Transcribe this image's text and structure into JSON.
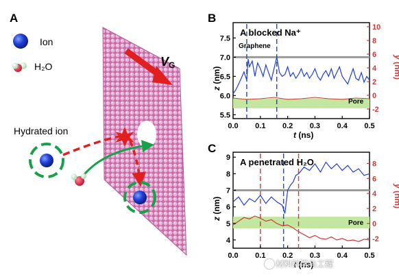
{
  "panel_a": {
    "label": "A",
    "legend_ion": "Ion",
    "legend_water": "H₂O",
    "velocity_label": "V",
    "velocity_sub": "G",
    "hydrated_label": "Hydrated ion",
    "colors": {
      "sheet": "#d98ac0",
      "ion": "#1f3fd6",
      "arrow_red": "#e02020",
      "arrow_green": "#19a04a"
    }
  },
  "chart_data": [
    {
      "type": "line",
      "panel": "B",
      "title": "A blocked Na⁺",
      "xlabel": "t (ns)",
      "ylabel_left": "z (nm)",
      "ylabel_right": "y (nm)",
      "xlim": [
        0,
        0.5
      ],
      "ylim_left": [
        5.4,
        7.9
      ],
      "ylim_right": [
        -3.4,
        10.6
      ],
      "xticks": [
        "0.0",
        "0.1",
        "0.2",
        "0.3",
        "0.4",
        "0.5"
      ],
      "yticks_left": [
        "5.5",
        "6.0",
        "6.5",
        "7.0",
        "7.5"
      ],
      "yticks_right": [
        "-2",
        "0",
        "2",
        "4",
        "6",
        "8",
        "10"
      ],
      "reference_lines": [
        {
          "name": "Graphene",
          "z": 7.0,
          "color": "#999999"
        }
      ],
      "band": {
        "name": "Pore",
        "z_from": 5.67,
        "z_to": 5.92,
        "color": "#c3e6a0"
      },
      "vlines": [
        {
          "x": 0.05,
          "color": "#1f3fd6"
        },
        {
          "x": 0.16,
          "color": "#1f3fd6"
        }
      ],
      "series": [
        {
          "axis": "left",
          "color": "#1f3fd6",
          "x": [
            0.0,
            0.01,
            0.02,
            0.03,
            0.04,
            0.05,
            0.055,
            0.06,
            0.07,
            0.08,
            0.09,
            0.1,
            0.11,
            0.12,
            0.13,
            0.14,
            0.15,
            0.16,
            0.17,
            0.18,
            0.19,
            0.2,
            0.21,
            0.22,
            0.23,
            0.24,
            0.25,
            0.26,
            0.27,
            0.28,
            0.29,
            0.3,
            0.31,
            0.32,
            0.33,
            0.34,
            0.35,
            0.36,
            0.37,
            0.38,
            0.39,
            0.4,
            0.41,
            0.42,
            0.43,
            0.44,
            0.45,
            0.46,
            0.47,
            0.48,
            0.49,
            0.5
          ],
          "y": [
            6.05,
            6.15,
            6.3,
            6.45,
            6.62,
            6.4,
            6.95,
            6.75,
            6.9,
            6.5,
            6.85,
            6.7,
            6.5,
            6.8,
            6.6,
            6.4,
            6.7,
            7.0,
            6.6,
            6.5,
            6.55,
            6.75,
            6.5,
            6.6,
            6.45,
            6.55,
            6.7,
            6.5,
            6.6,
            6.45,
            6.55,
            6.7,
            6.5,
            6.4,
            6.55,
            6.65,
            6.5,
            6.7,
            6.45,
            6.6,
            6.75,
            6.5,
            6.4,
            6.3,
            6.5,
            6.7,
            6.45,
            6.4,
            6.6,
            6.35,
            6.5,
            6.4
          ]
        },
        {
          "axis": "right",
          "color": "#d03a3a",
          "x": [
            0.0,
            0.05,
            0.1,
            0.15,
            0.2,
            0.25,
            0.3,
            0.35,
            0.4,
            0.45,
            0.5
          ],
          "y": [
            -0.4,
            -0.6,
            -0.5,
            -0.3,
            -0.6,
            -0.5,
            -0.3,
            -0.5,
            -0.6,
            -0.4,
            -0.5
          ]
        }
      ]
    },
    {
      "type": "line",
      "panel": "C",
      "title": "A penetrated H₂O",
      "xlabel": "t (ns)",
      "ylabel_left": "z (nm)",
      "ylabel_right": "y (nm)",
      "xlim": [
        0,
        0.5
      ],
      "ylim_left": [
        3.5,
        9.3
      ],
      "ylim_right": [
        -3.3,
        9.5
      ],
      "xticks": [
        "0.0",
        "0.1",
        "0.2",
        "0.3",
        "0.4",
        "0.5"
      ],
      "yticks_left": [
        "4",
        "5",
        "6",
        "7",
        "8",
        "9"
      ],
      "yticks_right": [
        "-2",
        "0",
        "2",
        "4",
        "6",
        "8"
      ],
      "reference_lines": [
        {
          "z": 7.0,
          "color": "#999999"
        }
      ],
      "band": {
        "name": "Pore",
        "z_from": 4.7,
        "z_to": 5.4,
        "color": "#c3e6a0"
      },
      "vlines": [
        {
          "x": 0.1,
          "color": "#d03a3a"
        },
        {
          "x": 0.185,
          "color": "#1f3fd6"
        },
        {
          "x": 0.24,
          "color": "#d03a3a"
        }
      ],
      "series": [
        {
          "axis": "left",
          "color": "#1f3fd6",
          "x": [
            0.0,
            0.02,
            0.04,
            0.06,
            0.08,
            0.1,
            0.12,
            0.14,
            0.16,
            0.18,
            0.19,
            0.2,
            0.21,
            0.22,
            0.23,
            0.24,
            0.26,
            0.28,
            0.3,
            0.32,
            0.34,
            0.36,
            0.38,
            0.4,
            0.42,
            0.44,
            0.46,
            0.48,
            0.5
          ],
          "y": [
            6.3,
            6.6,
            6.1,
            6.5,
            6.3,
            6.7,
            6.2,
            6.6,
            6.3,
            6.1,
            5.6,
            7.0,
            7.3,
            7.5,
            7.9,
            8.0,
            8.4,
            8.2,
            8.6,
            8.1,
            8.7,
            8.3,
            8.6,
            8.2,
            8.5,
            8.1,
            8.3,
            7.9,
            8.0
          ]
        },
        {
          "axis": "right",
          "color": "#d03a3a",
          "x": [
            0.0,
            0.02,
            0.04,
            0.06,
            0.08,
            0.1,
            0.12,
            0.14,
            0.16,
            0.18,
            0.2,
            0.22,
            0.24,
            0.26,
            0.28,
            0.3,
            0.32,
            0.34,
            0.36,
            0.38,
            0.4,
            0.42,
            0.44,
            0.46,
            0.48,
            0.5
          ],
          "y": [
            -0.2,
            0.3,
            0.8,
            0.6,
            1.0,
            0.7,
            0.3,
            0.5,
            0.0,
            -0.3,
            -0.2,
            -0.6,
            -1.1,
            -1.5,
            -1.9,
            -1.6,
            -2.0,
            -2.1,
            -1.8,
            -2.2,
            -2.0,
            -2.3,
            -2.2,
            -2.4,
            -2.1,
            -2.2
          ]
        }
      ]
    }
  ],
  "watermark": "材料科学与工程"
}
